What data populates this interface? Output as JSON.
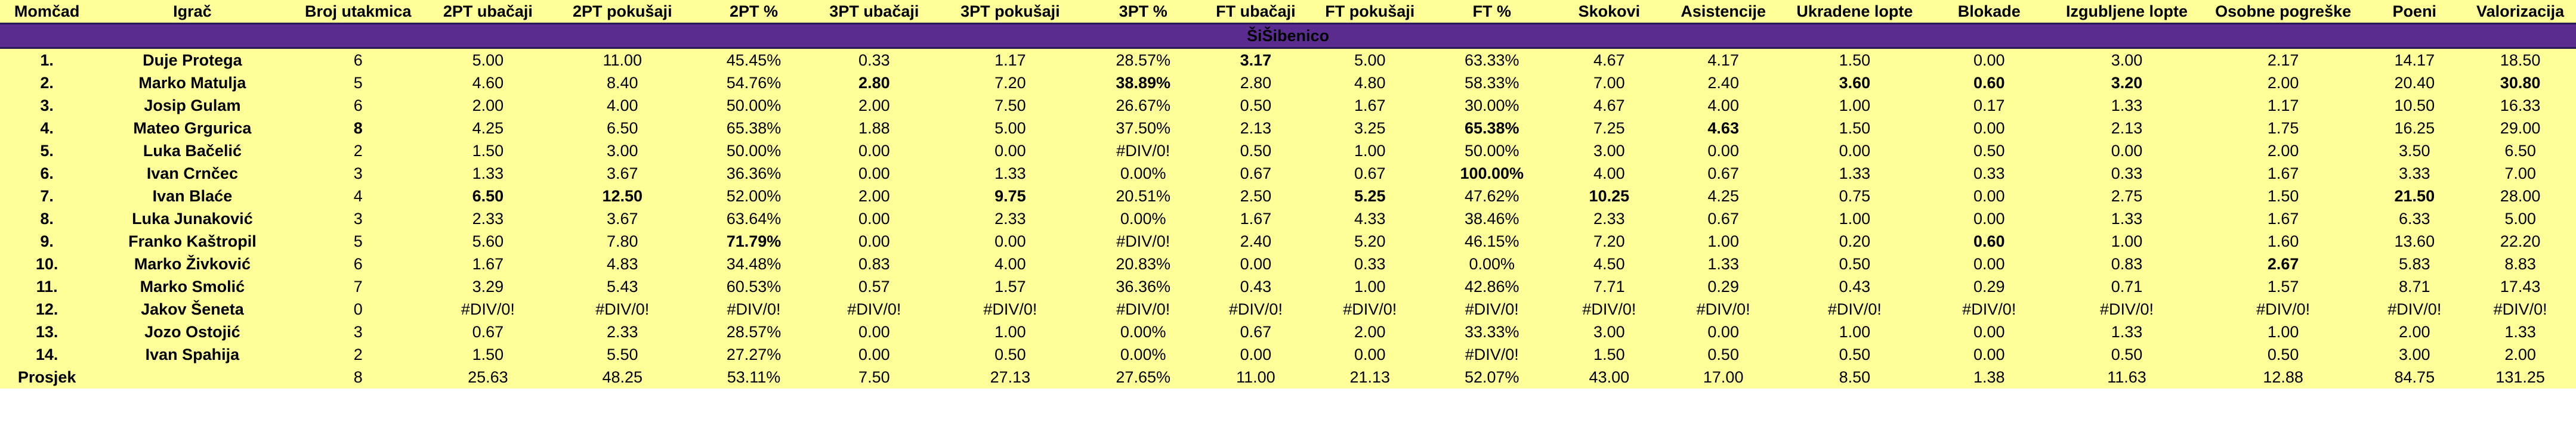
{
  "headers": [
    "Momčad",
    "Igrač",
    "Broj utakmica",
    "2PT ubačaji",
    "2PT pokušaji",
    "2PT %",
    "3PT ubačaji",
    "3PT pokušaji",
    "3PT %",
    "FT ubačaji",
    "FT pokušaji",
    "FT %",
    "Skokovi",
    "Asistencije",
    "Ukradene lopte",
    "Blokade",
    "Izgubljene lopte",
    "Osobne pogreške",
    "Poeni",
    "Valorizacija"
  ],
  "team_name": "ŠiŠibenico",
  "rows": [
    {
      "rank": "1.",
      "name": "Duje Protega",
      "values": [
        "6",
        "5.00",
        "11.00",
        "45.45%",
        "0.33",
        "1.17",
        "28.57%",
        "3.17",
        "5.00",
        "63.33%",
        "4.67",
        "4.17",
        "1.50",
        "0.00",
        "3.00",
        "2.17",
        "14.17",
        "18.50"
      ]
    },
    {
      "rank": "2.",
      "name": "Marko Matulja",
      "values": [
        "5",
        "4.60",
        "8.40",
        "54.76%",
        "2.80",
        "7.20",
        "38.89%",
        "2.80",
        "4.80",
        "58.33%",
        "7.00",
        "2.40",
        "3.60",
        "0.60",
        "3.20",
        "2.00",
        "20.40",
        "30.80"
      ]
    },
    {
      "rank": "3.",
      "name": "Josip Gulam",
      "values": [
        "6",
        "2.00",
        "4.00",
        "50.00%",
        "2.00",
        "7.50",
        "26.67%",
        "0.50",
        "1.67",
        "30.00%",
        "4.67",
        "4.00",
        "1.00",
        "0.17",
        "1.33",
        "1.17",
        "10.50",
        "16.33"
      ]
    },
    {
      "rank": "4.",
      "name": "Mateo Grgurica",
      "values": [
        "8",
        "4.25",
        "6.50",
        "65.38%",
        "1.88",
        "5.00",
        "37.50%",
        "2.13",
        "3.25",
        "65.38%",
        "7.25",
        "4.63",
        "1.50",
        "0.00",
        "2.13",
        "1.75",
        "16.25",
        "29.00"
      ]
    },
    {
      "rank": "5.",
      "name": "Luka Bačelić",
      "values": [
        "2",
        "1.50",
        "3.00",
        "50.00%",
        "0.00",
        "0.00",
        "#DIV/0!",
        "0.50",
        "1.00",
        "50.00%",
        "3.00",
        "0.00",
        "0.00",
        "0.50",
        "0.00",
        "2.00",
        "3.50",
        "6.50"
      ]
    },
    {
      "rank": "6.",
      "name": "Ivan Crnčec",
      "values": [
        "3",
        "1.33",
        "3.67",
        "36.36%",
        "0.00",
        "1.33",
        "0.00%",
        "0.67",
        "0.67",
        "100.00%",
        "4.00",
        "0.67",
        "1.33",
        "0.33",
        "0.33",
        "1.67",
        "3.33",
        "7.00"
      ]
    },
    {
      "rank": "7.",
      "name": "Ivan Blaće",
      "values": [
        "4",
        "6.50",
        "12.50",
        "52.00%",
        "2.00",
        "9.75",
        "20.51%",
        "2.50",
        "5.25",
        "47.62%",
        "10.25",
        "4.25",
        "0.75",
        "0.00",
        "2.75",
        "1.50",
        "21.50",
        "28.00"
      ]
    },
    {
      "rank": "8.",
      "name": "Luka Junaković",
      "values": [
        "3",
        "2.33",
        "3.67",
        "63.64%",
        "0.00",
        "2.33",
        "0.00%",
        "1.67",
        "4.33",
        "38.46%",
        "2.33",
        "0.67",
        "1.00",
        "0.00",
        "1.33",
        "1.67",
        "6.33",
        "5.00"
      ]
    },
    {
      "rank": "9.",
      "name": "Franko Kaštropil",
      "values": [
        "5",
        "5.60",
        "7.80",
        "71.79%",
        "0.00",
        "0.00",
        "#DIV/0!",
        "2.40",
        "5.20",
        "46.15%",
        "7.20",
        "1.00",
        "0.20",
        "0.60",
        "1.00",
        "1.60",
        "13.60",
        "22.20"
      ]
    },
    {
      "rank": "10.",
      "name": "Marko Živković",
      "values": [
        "6",
        "1.67",
        "4.83",
        "34.48%",
        "0.83",
        "4.00",
        "20.83%",
        "0.00",
        "0.33",
        "0.00%",
        "4.50",
        "1.33",
        "0.50",
        "0.00",
        "0.83",
        "2.67",
        "5.83",
        "8.83"
      ]
    },
    {
      "rank": "11.",
      "name": "Marko Smolić",
      "values": [
        "7",
        "3.29",
        "5.43",
        "60.53%",
        "0.57",
        "1.57",
        "36.36%",
        "0.43",
        "1.00",
        "42.86%",
        "7.71",
        "0.29",
        "0.43",
        "0.29",
        "0.71",
        "1.57",
        "8.71",
        "17.43"
      ]
    },
    {
      "rank": "12.",
      "name": "Jakov Šeneta",
      "values": [
        "0",
        "#DIV/0!",
        "#DIV/0!",
        "#DIV/0!",
        "#DIV/0!",
        "#DIV/0!",
        "#DIV/0!",
        "#DIV/0!",
        "#DIV/0!",
        "#DIV/0!",
        "#DIV/0!",
        "#DIV/0!",
        "#DIV/0!",
        "#DIV/0!",
        "#DIV/0!",
        "#DIV/0!",
        "#DIV/0!",
        "#DIV/0!"
      ]
    },
    {
      "rank": "13.",
      "name": "Jozo Ostojić",
      "values": [
        "3",
        "0.67",
        "2.33",
        "28.57%",
        "0.00",
        "1.00",
        "0.00%",
        "0.67",
        "2.00",
        "33.33%",
        "3.00",
        "0.00",
        "1.00",
        "0.00",
        "1.33",
        "1.00",
        "2.00",
        "1.33"
      ]
    },
    {
      "rank": "14.",
      "name": "Ivan Spahija",
      "values": [
        "2",
        "1.50",
        "5.50",
        "27.27%",
        "0.00",
        "0.50",
        "0.00%",
        "0.00",
        "0.00",
        "#DIV/0!",
        "1.50",
        "0.50",
        "0.50",
        "0.00",
        "0.50",
        "0.50",
        "3.00",
        "2.00"
      ]
    }
  ],
  "average": {
    "label": "Prosjek",
    "values": [
      "8",
      "25.63",
      "48.25",
      "53.11%",
      "7.50",
      "27.13",
      "27.65%",
      "11.00",
      "21.13",
      "52.07%",
      "43.00",
      "17.00",
      "8.50",
      "1.38",
      "11.63",
      "12.88",
      "84.75",
      "131.25"
    ]
  },
  "highlights": [
    {
      "row": 0,
      "col": 7,
      "style": "hi"
    },
    {
      "row": 1,
      "col": 4,
      "style": "hi"
    },
    {
      "row": 1,
      "col": 6,
      "style": "hi"
    },
    {
      "row": 1,
      "col": 12,
      "style": "hi"
    },
    {
      "row": 1,
      "col": 13,
      "style": "hi"
    },
    {
      "row": 1,
      "col": 14,
      "style": "hi"
    },
    {
      "row": 1,
      "col": 17,
      "style": "hi"
    },
    {
      "row": 3,
      "col": 0,
      "style": "hi"
    },
    {
      "row": 3,
      "col": 9,
      "style": "hi"
    },
    {
      "row": 3,
      "col": 11,
      "style": "hi"
    },
    {
      "row": 5,
      "col": 9,
      "style": "blue"
    },
    {
      "row": 6,
      "col": 1,
      "style": "hi"
    },
    {
      "row": 6,
      "col": 2,
      "style": "red"
    },
    {
      "row": 6,
      "col": 5,
      "style": "hi"
    },
    {
      "row": 6,
      "col": 8,
      "style": "hi"
    },
    {
      "row": 6,
      "col": 10,
      "style": "hi"
    },
    {
      "row": 6,
      "col": 16,
      "style": "hi"
    },
    {
      "row": 8,
      "col": 3,
      "style": "hi"
    },
    {
      "row": 8,
      "col": 13,
      "style": "hi"
    },
    {
      "row": 9,
      "col": 15,
      "style": "hi"
    }
  ],
  "colors": {
    "team_bar": "#5B2C8F",
    "cell_bg": "#FFFF99",
    "red_text": "#E0201B",
    "blue_text": "#3C7FD0"
  }
}
